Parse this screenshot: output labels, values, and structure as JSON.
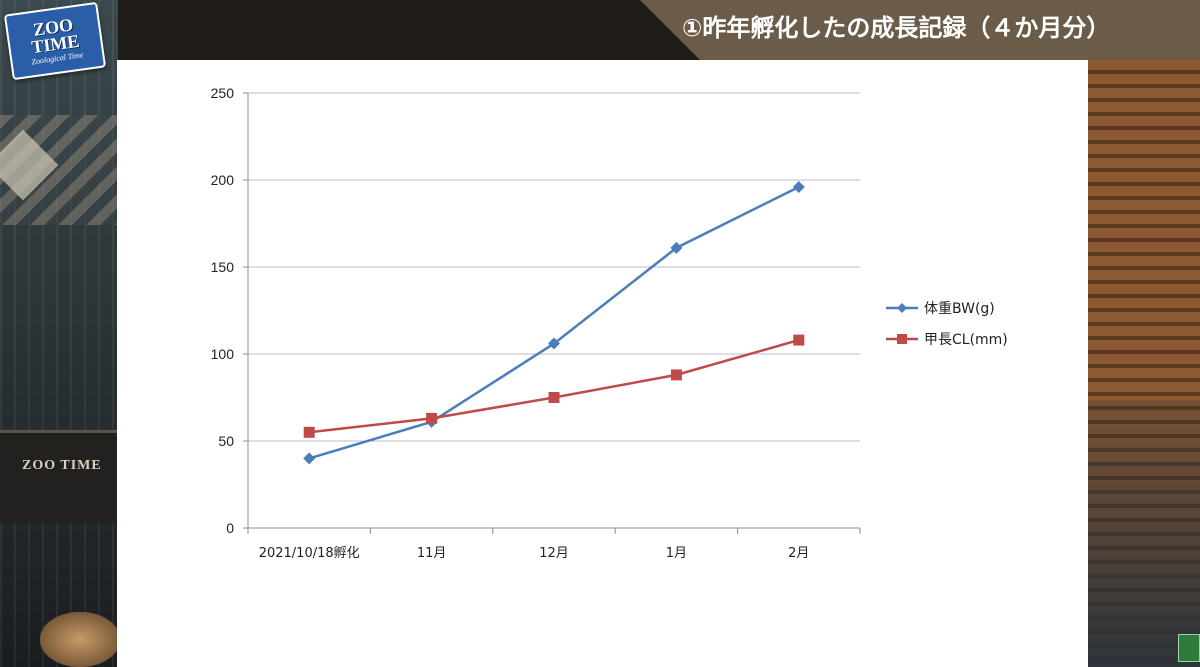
{
  "logo": {
    "main_line1": "ZOO",
    "main_line2": "TIME",
    "sub": "Zoological Time"
  },
  "background": {
    "chair_text": "ZOO TIME"
  },
  "banner": {
    "title": "①昨年孵化したの成長記録（４か月分）"
  },
  "colors": {
    "weight_series": "#4a7ebb",
    "length_series": "#be4b48",
    "banner": "#6b5c49",
    "grid": "#bdbdbd"
  },
  "icons": {
    "corner": "green-status-icon"
  },
  "chart_data": {
    "type": "line",
    "title": "",
    "xlabel": "",
    "ylabel": "",
    "categories": [
      "2021/10/18孵化",
      "11月",
      "12月",
      "1月",
      "2月"
    ],
    "ylim": [
      0,
      250
    ],
    "yticks": [
      0,
      50,
      100,
      150,
      200,
      250
    ],
    "grid": "horizontal",
    "legend_position": "right",
    "series": [
      {
        "name": "体重BW(g)",
        "marker": "diamond",
        "color": "#4a7ebb",
        "values": [
          40,
          61,
          106,
          161,
          196
        ]
      },
      {
        "name": "甲長CL(mm)",
        "marker": "square",
        "color": "#be4b48",
        "values": [
          55,
          63,
          75,
          88,
          108
        ]
      }
    ]
  }
}
